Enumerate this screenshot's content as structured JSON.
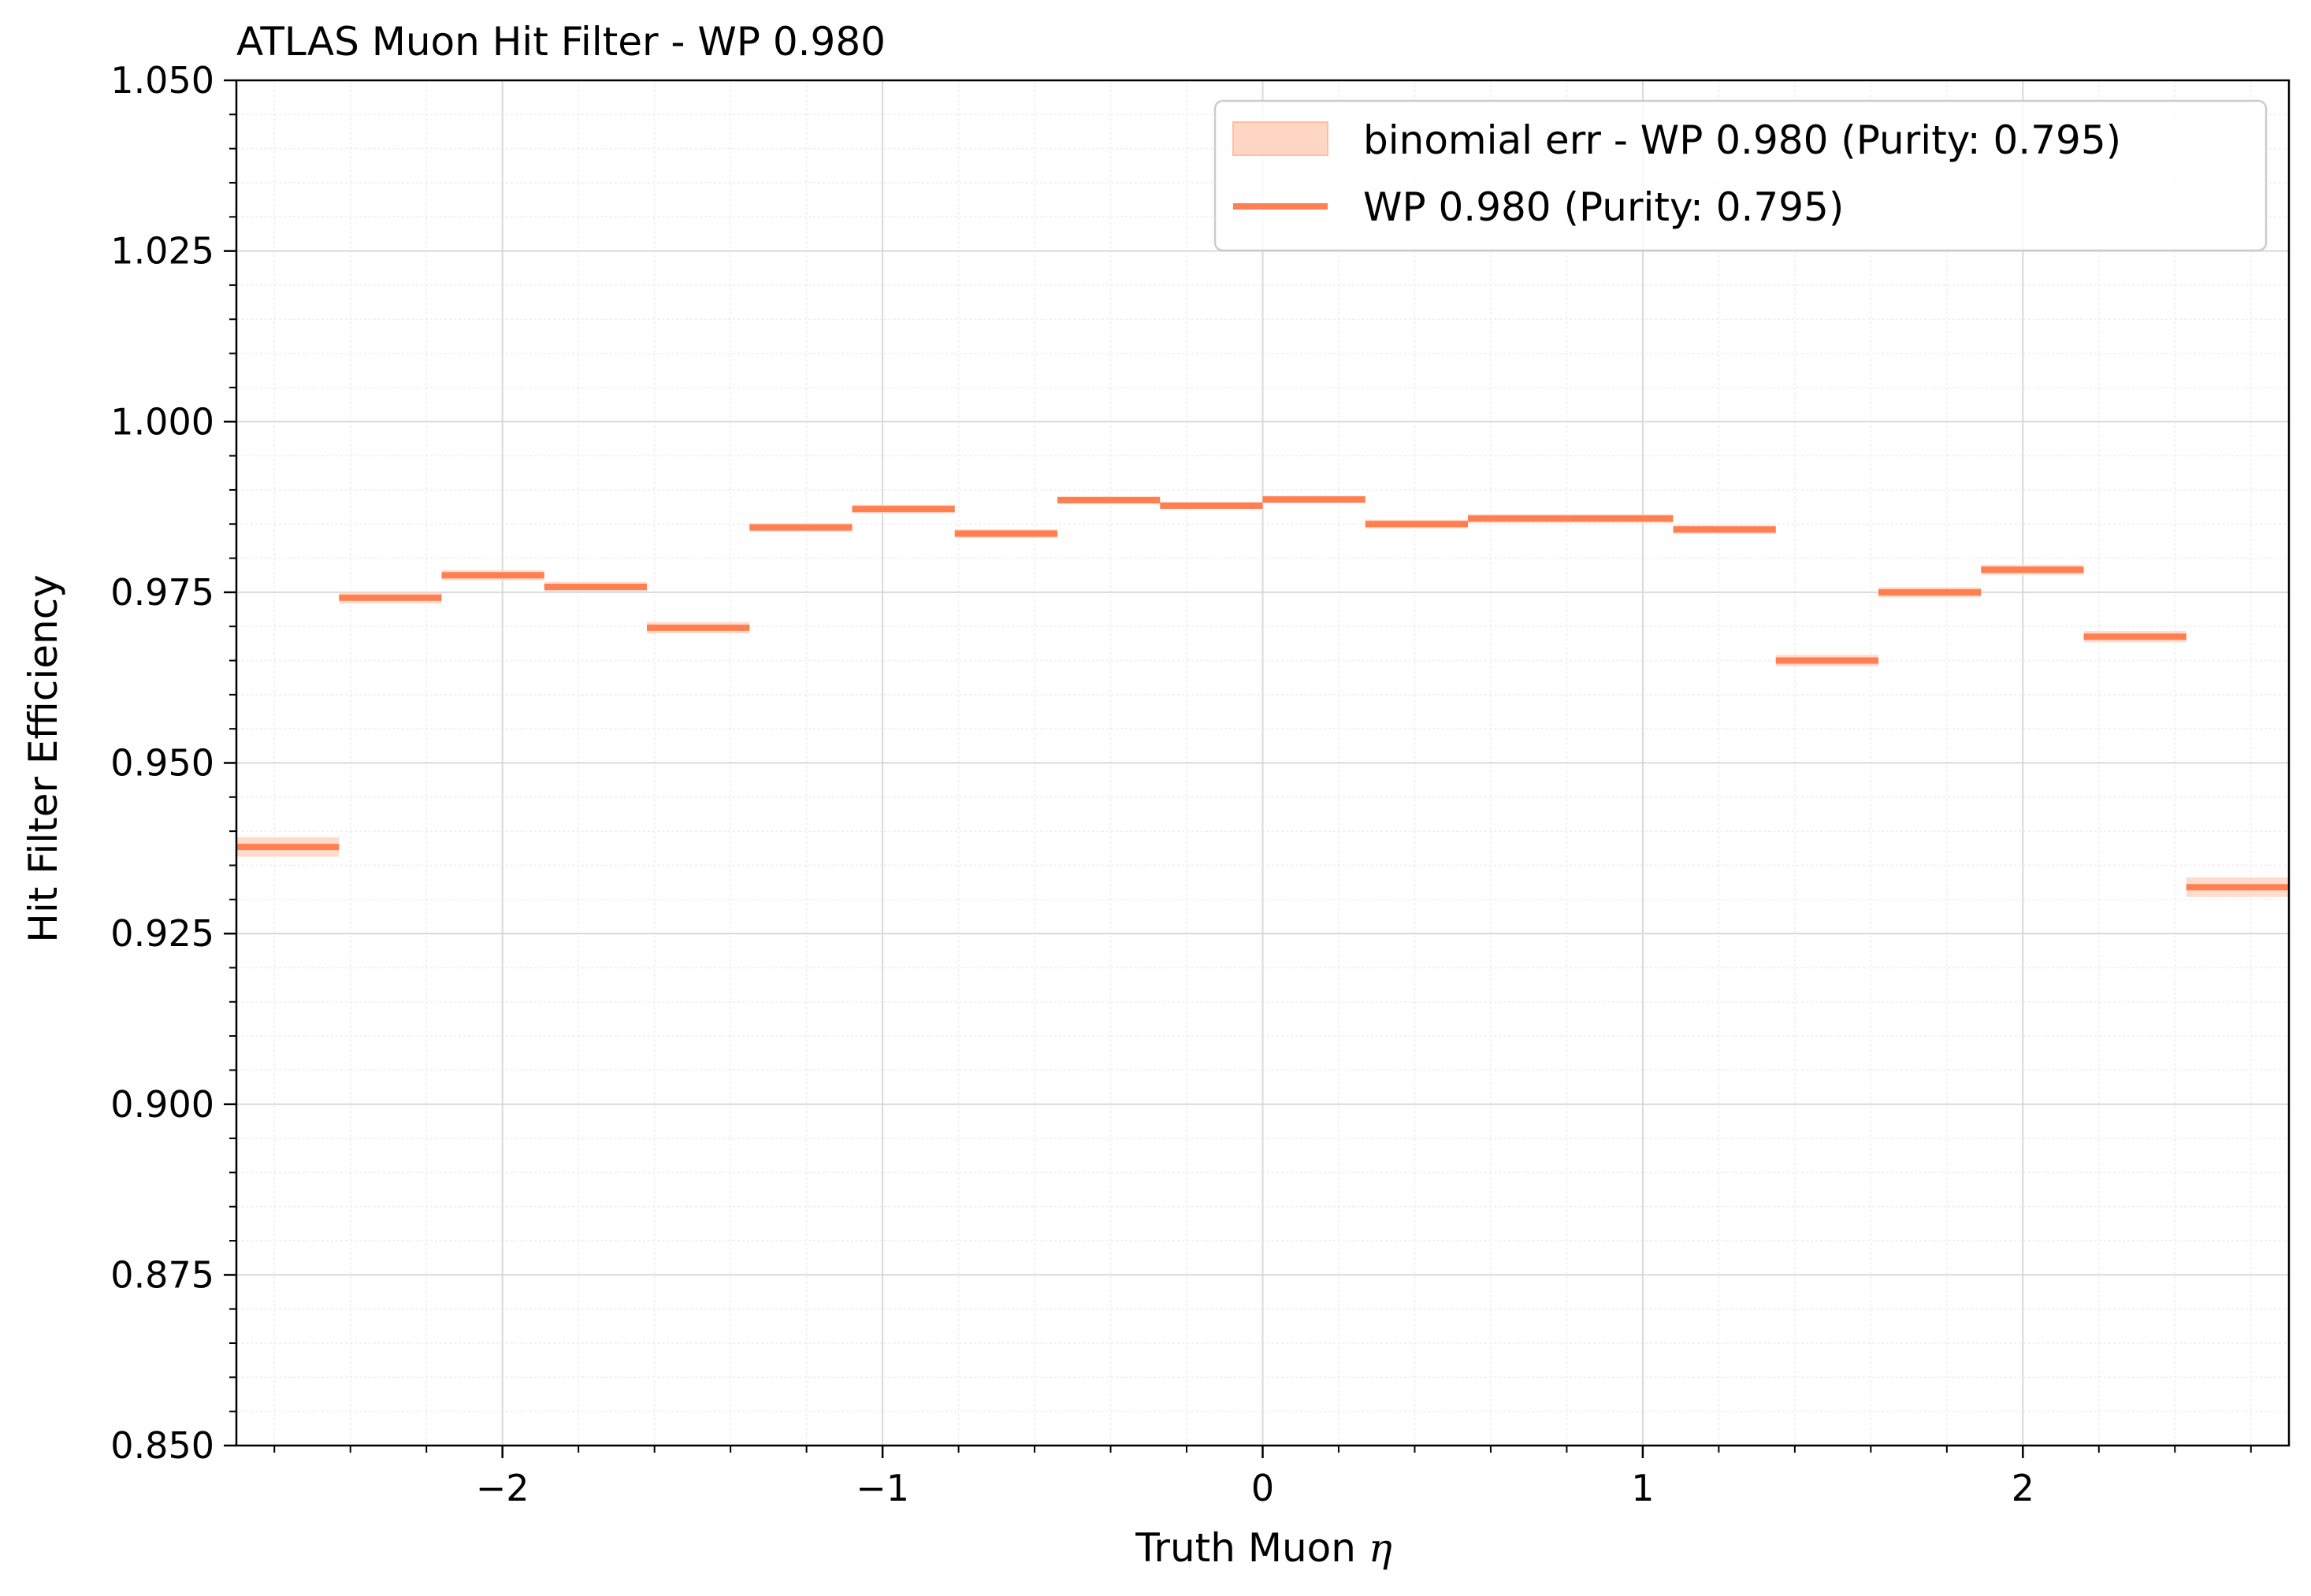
{
  "chart_data": {
    "type": "step-histogram",
    "title": "ATLAS Muon Hit Filter - WP 0.980",
    "xlabel": "Truth Muon η",
    "xlabel_main": "Truth Muon ",
    "xlabel_symbol": "η",
    "ylabel": "Hit Filter Efficiency",
    "xlim": [
      -2.7,
      2.7
    ],
    "ylim": [
      0.85,
      1.05
    ],
    "x_ticks": [
      -2,
      -1,
      0,
      1,
      2
    ],
    "x_tick_labels": [
      "−2",
      "−1",
      "0",
      "1",
      "2"
    ],
    "y_ticks": [
      0.85,
      0.875,
      0.9,
      0.925,
      0.95,
      0.975,
      1.0,
      1.025,
      1.05
    ],
    "y_tick_labels": [
      "0.850",
      "0.875",
      "0.900",
      "0.925",
      "0.950",
      "0.975",
      "1.000",
      "1.025",
      "1.050"
    ],
    "grid": true,
    "minor_grid": true,
    "legend_position": "top-right",
    "bin_edges": [
      -2.7,
      -2.43,
      -2.16,
      -1.89,
      -1.62,
      -1.35,
      -1.08,
      -0.81,
      -0.54,
      -0.27,
      0.0,
      0.27,
      0.54,
      0.81,
      1.08,
      1.35,
      1.62,
      1.89,
      2.16,
      2.43,
      2.7
    ],
    "series": [
      {
        "name": "WP 0.980 (Purity: 0.795)",
        "kind": "step-line",
        "color": "#ff7f50",
        "values": [
          0.9377,
          0.9742,
          0.9775,
          0.9758,
          0.9698,
          0.9845,
          0.9872,
          0.9836,
          0.9885,
          0.9877,
          0.9886,
          0.985,
          0.9858,
          0.9858,
          0.9842,
          0.965,
          0.975,
          0.9783,
          0.9685,
          0.9318
        ]
      },
      {
        "name": "binomial err - WP 0.980 (Purity: 0.795)",
        "kind": "error-band",
        "color": "#ffd5c4",
        "errors": [
          0.0012,
          0.0006,
          0.0005,
          0.0005,
          0.0006,
          0.0004,
          0.0004,
          0.0004,
          0.0003,
          0.0003,
          0.0003,
          0.0004,
          0.0004,
          0.0004,
          0.0004,
          0.0006,
          0.0005,
          0.0005,
          0.0006,
          0.0012
        ]
      }
    ]
  }
}
